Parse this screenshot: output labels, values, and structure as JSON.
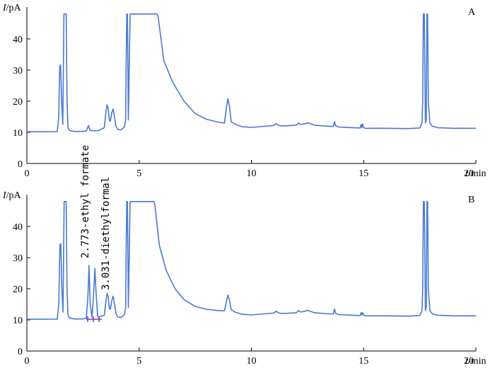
{
  "chart_data": [
    {
      "type": "line",
      "panel_label": "A",
      "ylabel_var": "I",
      "ylabel_unit": "/pA",
      "xlabel_var": "t",
      "xlabel_unit": "/min",
      "xlim": [
        0,
        20
      ],
      "ylim": [
        0,
        45
      ],
      "xticks": [
        0,
        5,
        10,
        15,
        20
      ],
      "yticks": [
        0,
        10,
        20,
        30,
        40
      ],
      "xtick_labels": [
        "0",
        "5",
        "10",
        "15",
        "20"
      ],
      "ytick_labels": [
        "0",
        "10",
        "20",
        "30",
        "40"
      ],
      "grid": false,
      "series": [
        {
          "color": "#4a78d6",
          "x": [
            0,
            1.35,
            1.42,
            1.46,
            1.5,
            1.55,
            1.6,
            1.65,
            1.75,
            1.79,
            1.83,
            1.9,
            2.1,
            2.5,
            2.65,
            2.72,
            2.75,
            2.8,
            2.9,
            3.2,
            3.45,
            3.52,
            3.57,
            3.62,
            3.68,
            3.72,
            3.78,
            3.84,
            3.9,
            3.97,
            4.05,
            4.2,
            4.35,
            4.4,
            4.42,
            4.45,
            4.48,
            4.5,
            4.52,
            4.6,
            5.5,
            5.8,
            5.85,
            6.1,
            6.5,
            7.0,
            7.5,
            8.0,
            8.5,
            8.8,
            8.88,
            8.95,
            9.02,
            9.1,
            9.3,
            9.6,
            10.0,
            11.0,
            11.1,
            11.2,
            11.3,
            11.5,
            12.0,
            12.1,
            12.2,
            12.4,
            12.5,
            12.8,
            13.5,
            13.65,
            13.7,
            13.75,
            13.9,
            14.5,
            14.85,
            14.88,
            14.92,
            14.95,
            15.0,
            15.1,
            16.0,
            17.0,
            17.5,
            17.6,
            17.63,
            17.66,
            17.7,
            17.75,
            17.79,
            17.82,
            17.85,
            17.88,
            17.95,
            18.05,
            18.3,
            19.0,
            20.0
          ],
          "y": [
            10.2,
            10.25,
            15,
            31,
            31.7,
            20,
            12.5,
            48,
            48,
            20,
            11.5,
            10.6,
            10.3,
            10.3,
            10.5,
            11.8,
            12.2,
            10.7,
            10.5,
            10.6,
            11.5,
            16.5,
            18.8,
            17.8,
            13.8,
            13.6,
            16.3,
            17.5,
            15.2,
            12,
            10.9,
            10.8,
            11.8,
            14,
            30,
            48,
            48,
            30,
            14,
            48,
            48,
            48,
            47,
            33,
            26,
            20,
            16,
            14.2,
            13.3,
            13.0,
            17.5,
            20.8,
            18.5,
            13.4,
            12.5,
            11.8,
            11.6,
            12.2,
            12.8,
            12.3,
            12.1,
            12.1,
            12.3,
            13,
            12.5,
            12.8,
            13.1,
            12.3,
            11.9,
            11.9,
            13.5,
            12.1,
            11.7,
            11.5,
            11.4,
            12.5,
            11.6,
            12.7,
            11.5,
            11.3,
            11.3,
            11.2,
            11.4,
            13,
            20,
            48,
            48,
            13,
            14,
            48,
            48,
            20,
            13,
            12,
            11.5,
            11.3,
            11.3
          ]
        }
      ]
    },
    {
      "type": "line",
      "panel_label": "B",
      "ylabel_var": "I",
      "ylabel_unit": "/pA",
      "xlabel_var": "t",
      "xlabel_unit": "/min",
      "xlim": [
        0,
        20
      ],
      "ylim": [
        0,
        45
      ],
      "xticks": [
        0,
        5,
        10,
        15,
        20
      ],
      "yticks": [
        0,
        10,
        20,
        30,
        40
      ],
      "xtick_labels": [
        "0",
        "5",
        "10",
        "15",
        "20"
      ],
      "ytick_labels": [
        "0",
        "10",
        "20",
        "30",
        "40"
      ],
      "grid": false,
      "annotations": [
        {
          "text": "2.773-ethyl formate",
          "x": 2.773,
          "y": 27.5
        },
        {
          "text": "3.031-diethylformal",
          "x": 3.031,
          "y": 26.5
        }
      ],
      "series": [
        {
          "color": "#4a78d6",
          "x": [
            0,
            1.35,
            1.42,
            1.47,
            1.51,
            1.56,
            1.61,
            1.66,
            1.75,
            1.79,
            1.83,
            1.9,
            2.1,
            2.5,
            2.65,
            2.72,
            2.77,
            2.82,
            2.9,
            2.97,
            3.03,
            3.08,
            3.15,
            3.2,
            3.45,
            3.52,
            3.57,
            3.62,
            3.68,
            3.72,
            3.78,
            3.84,
            3.9,
            3.97,
            4.05,
            4.2,
            4.35,
            4.4,
            4.42,
            4.45,
            4.48,
            4.5,
            4.52,
            4.6,
            5.5,
            5.65,
            5.7,
            5.9,
            6.2,
            6.6,
            7.0,
            7.5,
            8.0,
            8.5,
            8.8,
            8.88,
            8.95,
            9.02,
            9.1,
            9.3,
            9.6,
            10.0,
            11.0,
            11.1,
            11.2,
            11.3,
            11.5,
            12.0,
            12.1,
            12.2,
            12.4,
            12.5,
            12.8,
            13.5,
            13.65,
            13.7,
            13.75,
            13.9,
            14.5,
            14.85,
            14.88,
            14.92,
            14.95,
            15.0,
            15.1,
            16.0,
            17.0,
            17.5,
            17.6,
            17.63,
            17.66,
            17.7,
            17.75,
            17.79,
            17.82,
            17.85,
            17.88,
            17.95,
            18.05,
            18.3,
            19.0,
            20.0
          ],
          "y": [
            10.2,
            10.25,
            15,
            34,
            34.5,
            20,
            12.5,
            48,
            48,
            20,
            11.5,
            10.6,
            10.3,
            10.3,
            10.6,
            18,
            27.5,
            15,
            10.9,
            18,
            26.5,
            19,
            11.2,
            10.9,
            11.5,
            16,
            18.5,
            17.6,
            13.6,
            13.4,
            16.2,
            17.6,
            15.2,
            12.1,
            10.9,
            10.8,
            11.8,
            14,
            30,
            48,
            48,
            30,
            14,
            48,
            48,
            48,
            47,
            34,
            26,
            20,
            16.5,
            14.3,
            13.4,
            13.0,
            12.9,
            15.5,
            18,
            16.5,
            13.3,
            12.4,
            11.8,
            11.6,
            12.2,
            12.8,
            12.3,
            12.1,
            12.1,
            12.3,
            13,
            12.5,
            12.8,
            13.1,
            12.3,
            11.9,
            11.9,
            13.5,
            12.1,
            11.7,
            11.5,
            11.4,
            12.3,
            11.6,
            12.4,
            11.5,
            11.3,
            11.3,
            11.2,
            11.4,
            13,
            20,
            48,
            48,
            13,
            14,
            48,
            48,
            20,
            13,
            12,
            11.5,
            11.3,
            11.3
          ]
        }
      ]
    }
  ]
}
